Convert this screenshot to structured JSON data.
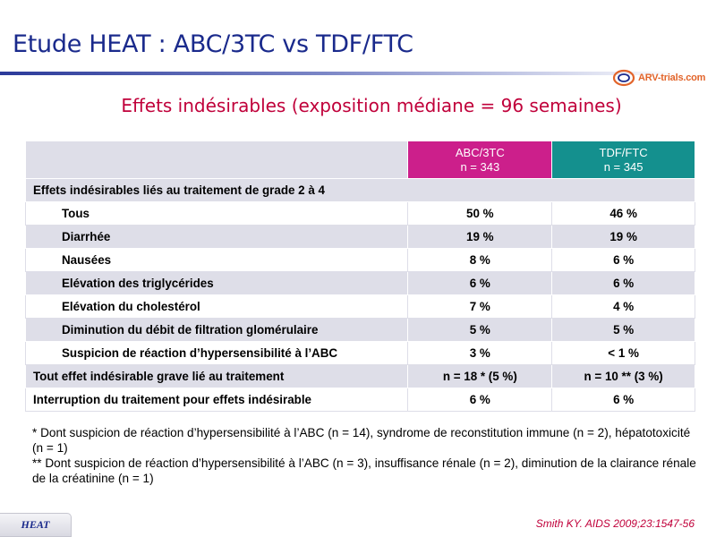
{
  "header": {
    "title": "Etude HEAT : ABC/3TC vs TDF/FTC",
    "logo_text": "ARV-trials.com"
  },
  "subtitle": "Effets indésirables (exposition médiane = 96 semaines)",
  "table": {
    "columns": [
      {
        "name": "ABC/3TC",
        "n": "n = 343",
        "color": "#cc1f8b"
      },
      {
        "name": "TDF/FTC",
        "n": "n = 345",
        "color": "#14908e"
      }
    ],
    "section_label": "Effets indésirables liés au traitement de grade 2 à 4",
    "rows": [
      {
        "label": "Tous",
        "abc": "50 %",
        "tdf": "46 %"
      },
      {
        "label": "Diarrhée",
        "abc": "19 %",
        "tdf": "19 %"
      },
      {
        "label": "Nausées",
        "abc": "8 %",
        "tdf": "6 %"
      },
      {
        "label": "Elévation des triglycérides",
        "abc": "6 %",
        "tdf": "6 %"
      },
      {
        "label": "Elévation du cholestérol",
        "abc": "7 %",
        "tdf": "4 %"
      },
      {
        "label": "Diminution du débit de filtration glomérulaire",
        "abc": "5 %",
        "tdf": "5 %"
      },
      {
        "label": "Suspicion de réaction d’hypersensibilité à l’ABC",
        "abc": "3 %",
        "tdf": "< 1 %"
      },
      {
        "label": "Tout effet indésirable grave lié au traitement",
        "abc": "n = 18 * (5 %)",
        "tdf": "n = 10 ** (3 %)"
      },
      {
        "label": "Interruption du traitement  pour effets indésirable",
        "abc": "6 %",
        "tdf": "6 %"
      }
    ]
  },
  "notes": {
    "note1": "* Dont suspicion de réaction d’hypersensibilité à l’ABC (n = 14), syndrome de reconstitution immune (n = 2), hépatotoxicité (n = 1)",
    "note2": "** Dont suspicion de réaction d’hypersensibilité à l’ABC (n = 3), insuffisance rénale (n = 2), diminution de la clairance rénale de la créatinine (n = 1)"
  },
  "footer": {
    "tag": "HEAT",
    "reference": "Smith KY. AIDS 2009;23:1547-56"
  }
}
